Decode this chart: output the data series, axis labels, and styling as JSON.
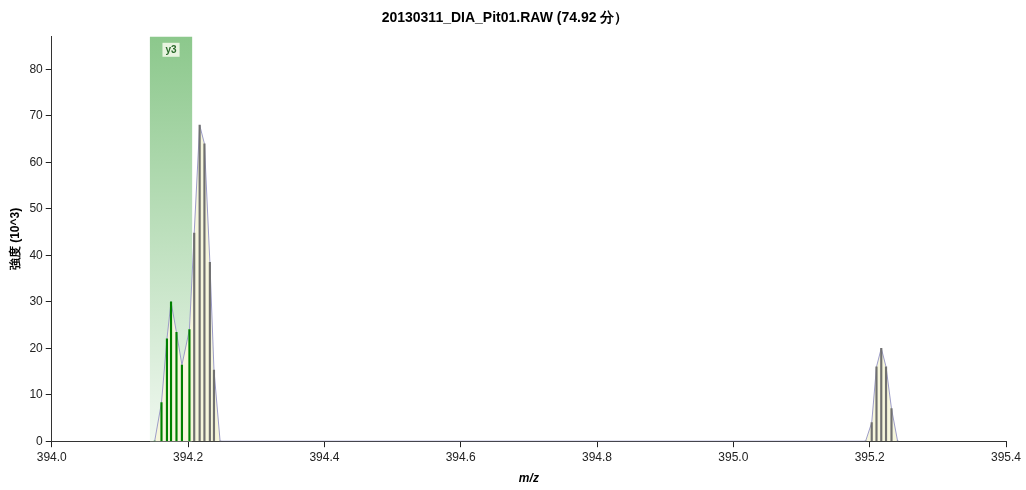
{
  "chart_data": {
    "type": "area",
    "title": "20130311_DIA_Pit01.RAW (74.92 分）",
    "xlabel": "m/z",
    "ylabel": "強度 (10^3)",
    "x": [
      394.151,
      394.161,
      394.169,
      394.175,
      394.183,
      394.191,
      394.202,
      394.209,
      394.217,
      394.224,
      394.232,
      394.238,
      394.247,
      395.194,
      395.203,
      395.21,
      395.217,
      395.224,
      395.232,
      395.241
    ],
    "series": [
      {
        "color": "#9c9cc8",
        "values": [
          0,
          8.3,
          22,
          30,
          23.4,
          16.4,
          24,
          44.8,
          68,
          64,
          38.5,
          15.3,
          0,
          0,
          4,
          16,
          20,
          16,
          7,
          0
        ]
      },
      {
        "type": "bar",
        "values": [
          0,
          8.3,
          22,
          30,
          23.4,
          16.4,
          24,
          44.8,
          68,
          64,
          38.5,
          15.3,
          0,
          0,
          4,
          16,
          20,
          16,
          7,
          0
        ],
        "colors": [
          "#008000",
          "#008000",
          "#008000",
          "#008000",
          "#008000",
          "#008000",
          "#008000",
          "#707070",
          "#707070",
          "#707070",
          "#707070",
          "#707070",
          "#707070",
          "#707070",
          "#707070",
          "#707070",
          "#707070",
          "#707070",
          "#707070",
          "#707070"
        ]
      }
    ],
    "xlim": [
      394.0,
      395.4
    ],
    "xticks": [
      {
        "value": 394,
        "label": "394.0"
      },
      {
        "value": 394.2,
        "label": "394.2"
      },
      {
        "value": 394.4,
        "label": "394.4"
      },
      {
        "value": 394.6,
        "label": "394.6"
      },
      {
        "value": 394.8,
        "label": "394.8"
      },
      {
        "value": 395,
        "label": "395.0"
      },
      {
        "value": 395.2,
        "label": "395.2"
      },
      {
        "value": 395.4,
        "label": "395.4"
      }
    ],
    "ylim": [
      0,
      87
    ],
    "yticks": [
      0,
      10,
      20,
      30,
      40,
      50,
      60,
      70,
      80
    ],
    "bands": [
      {
        "axis": "x",
        "from": 394.144,
        "to": 394.206,
        "label": "y3",
        "color": "#8cc88c"
      }
    ],
    "grid": false,
    "legend": false
  }
}
